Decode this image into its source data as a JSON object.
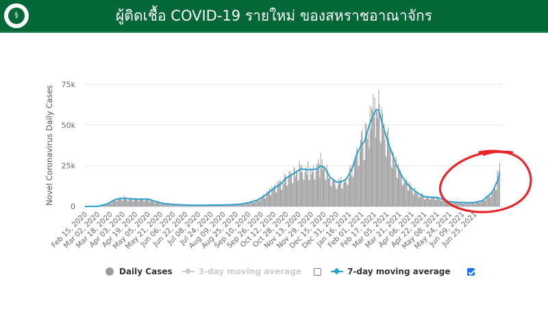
{
  "header": {
    "title": "ผู้ติดเชื้อ COVID-19 รายใหม่ ของสหราชอาณาจักร",
    "logo_icon": "ministry-of-public-health-emblem",
    "background_color": "#036738"
  },
  "legend": {
    "items": [
      {
        "label": "Daily Cases",
        "icon": "circle-marker-icon",
        "color": "#9a9a9a",
        "enabled": true
      },
      {
        "label": "3-day moving average",
        "icon": "line-diamond-marker-icon",
        "color": "#cccccc",
        "enabled": false,
        "checkbox_checked": false
      },
      {
        "label": "7-day moving average",
        "icon": "line-diamond-marker-icon",
        "color": "#2a9fd0",
        "enabled": true,
        "checkbox_checked": true
      }
    ]
  },
  "annotation": {
    "type": "hand-drawn-circle",
    "color": "#e8262a",
    "target": "May-Jun 2021 rise"
  },
  "chart_data": {
    "type": "bar",
    "title": "ผู้ติดเชื้อ COVID-19 รายใหม่ ของสหราชอาณาจักร",
    "xlabel": "",
    "ylabel": "Novel Coronavirus Daily Cases",
    "ylim": [
      0,
      75000
    ],
    "yticks": [
      0,
      25000,
      50000,
      75000
    ],
    "ytick_labels": [
      "0",
      "25k",
      "50k",
      "75k"
    ],
    "grid": true,
    "legend_position": "bottom",
    "x_start": "Feb 15, 2020",
    "x_end": "Jul 01, 2021",
    "xtick_labels": [
      "Feb 15, 2020",
      "Mar 02, 2020",
      "Mar 18, 2020",
      "Apr 03, 2020",
      "Apr 19, 2020",
      "May 05, 2020",
      "May 21, 2020",
      "Jun 06, 2020",
      "Jun 22, 2020",
      "Jul 08, 2020",
      "Jul 24, 2020",
      "Aug 09, 2020",
      "Aug 25, 2020",
      "Sep 10, 2020",
      "Sep 26, 2020",
      "Oct 12, 2020",
      "Oct 28, 2020",
      "Nov 13, 2020",
      "Nov 29, 2020",
      "Dec 15, 2020",
      "Dec 31, 2020",
      "Jan 16, 2021",
      "Feb 01, 2021",
      "Feb 17, 2021",
      "Mar 05, 2021",
      "Mar 21, 2021",
      "Apr 06, 2021",
      "Apr 22, 2021",
      "May 08, 2021",
      "May 24, 2021",
      "Jun 09, 2021",
      "Jun 25, 2021"
    ],
    "series": [
      {
        "name": "7-day moving average",
        "color": "#2a9fd0",
        "points_day_value": [
          [
            0,
            0
          ],
          [
            16,
            50
          ],
          [
            28,
            1500
          ],
          [
            40,
            4500
          ],
          [
            50,
            5000
          ],
          [
            60,
            4600
          ],
          [
            70,
            4400
          ],
          [
            80,
            4500
          ],
          [
            90,
            3000
          ],
          [
            100,
            1800
          ],
          [
            115,
            1200
          ],
          [
            130,
            800
          ],
          [
            145,
            700
          ],
          [
            160,
            800
          ],
          [
            175,
            900
          ],
          [
            190,
            1100
          ],
          [
            200,
            1500
          ],
          [
            210,
            2500
          ],
          [
            220,
            4000
          ],
          [
            230,
            7000
          ],
          [
            240,
            11000
          ],
          [
            250,
            14000
          ],
          [
            255,
            17000
          ],
          [
            265,
            20000
          ],
          [
            275,
            23000
          ],
          [
            285,
            22500
          ],
          [
            295,
            23000
          ],
          [
            300,
            25000
          ],
          [
            305,
            24000
          ],
          [
            312,
            18000
          ],
          [
            320,
            15000
          ],
          [
            326,
            15000
          ],
          [
            333,
            17000
          ],
          [
            340,
            23000
          ],
          [
            346,
            32000
          ],
          [
            352,
            38000
          ],
          [
            356,
            40000
          ],
          [
            362,
            50000
          ],
          [
            367,
            56000
          ],
          [
            371,
            59500
          ],
          [
            374,
            59000
          ],
          [
            378,
            52000
          ],
          [
            384,
            42000
          ],
          [
            390,
            34000
          ],
          [
            396,
            26000
          ],
          [
            402,
            20000
          ],
          [
            408,
            15000
          ],
          [
            414,
            12000
          ],
          [
            420,
            9500
          ],
          [
            426,
            7500
          ],
          [
            432,
            6000
          ],
          [
            440,
            5700
          ],
          [
            448,
            5500
          ],
          [
            455,
            4500
          ],
          [
            463,
            3000
          ],
          [
            470,
            2600
          ],
          [
            478,
            2400
          ],
          [
            486,
            2300
          ],
          [
            493,
            2300
          ],
          [
            500,
            2800
          ],
          [
            506,
            3500
          ],
          [
            511,
            5500
          ],
          [
            516,
            7500
          ],
          [
            520,
            10000
          ],
          [
            523,
            13500
          ],
          [
            526,
            16500
          ],
          [
            528,
            21000
          ]
        ]
      },
      {
        "name": "Daily Cases",
        "color": "#9a9a9a",
        "notable_points_day_value": [
          [
            50,
            7000
          ],
          [
            300,
            33000
          ],
          [
            363,
            62000
          ],
          [
            369,
            67000
          ],
          [
            525,
            22000
          ],
          [
            528,
            27000
          ]
        ]
      }
    ]
  }
}
